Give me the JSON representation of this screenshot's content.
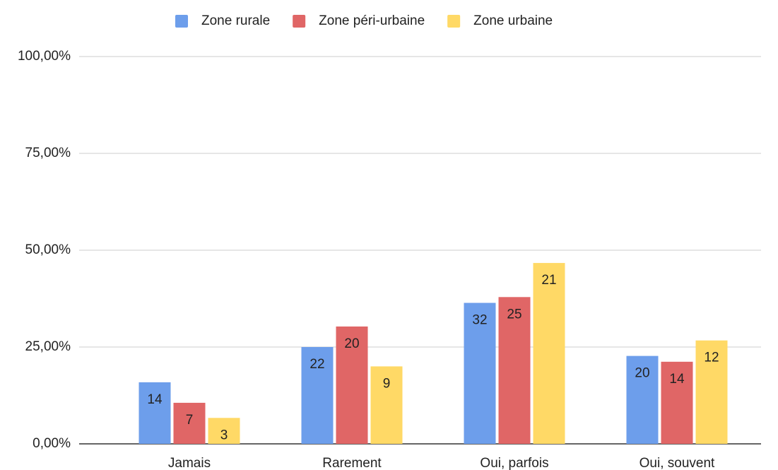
{
  "chart_data": {
    "type": "bar",
    "categories": [
      "Jamais",
      "Rarement",
      "Oui, parfois",
      "Oui, souvent"
    ],
    "series": [
      {
        "name": "Zone rurale",
        "color": "#6d9eeb",
        "values": [
          15.9,
          25.0,
          36.4,
          22.7
        ],
        "counts": [
          14,
          22,
          32,
          20
        ]
      },
      {
        "name": "Zone péri-urbaine",
        "color": "#e06666",
        "values": [
          10.6,
          30.3,
          37.9,
          21.2
        ],
        "counts": [
          7,
          20,
          25,
          14
        ]
      },
      {
        "name": "Zone urbaine",
        "color": "#ffd966",
        "values": [
          6.7,
          20.0,
          46.7,
          26.7
        ],
        "counts": [
          3,
          9,
          21,
          12
        ]
      }
    ],
    "ylim": [
      0,
      100
    ],
    "yticks": [
      {
        "value": 0,
        "label": "0,00%"
      },
      {
        "value": 25,
        "label": "25,00%"
      },
      {
        "value": 50,
        "label": "50,00%"
      },
      {
        "value": 75,
        "label": "75,00%"
      },
      {
        "value": 100,
        "label": "100,00%"
      }
    ],
    "grid": true,
    "legend": "top"
  }
}
